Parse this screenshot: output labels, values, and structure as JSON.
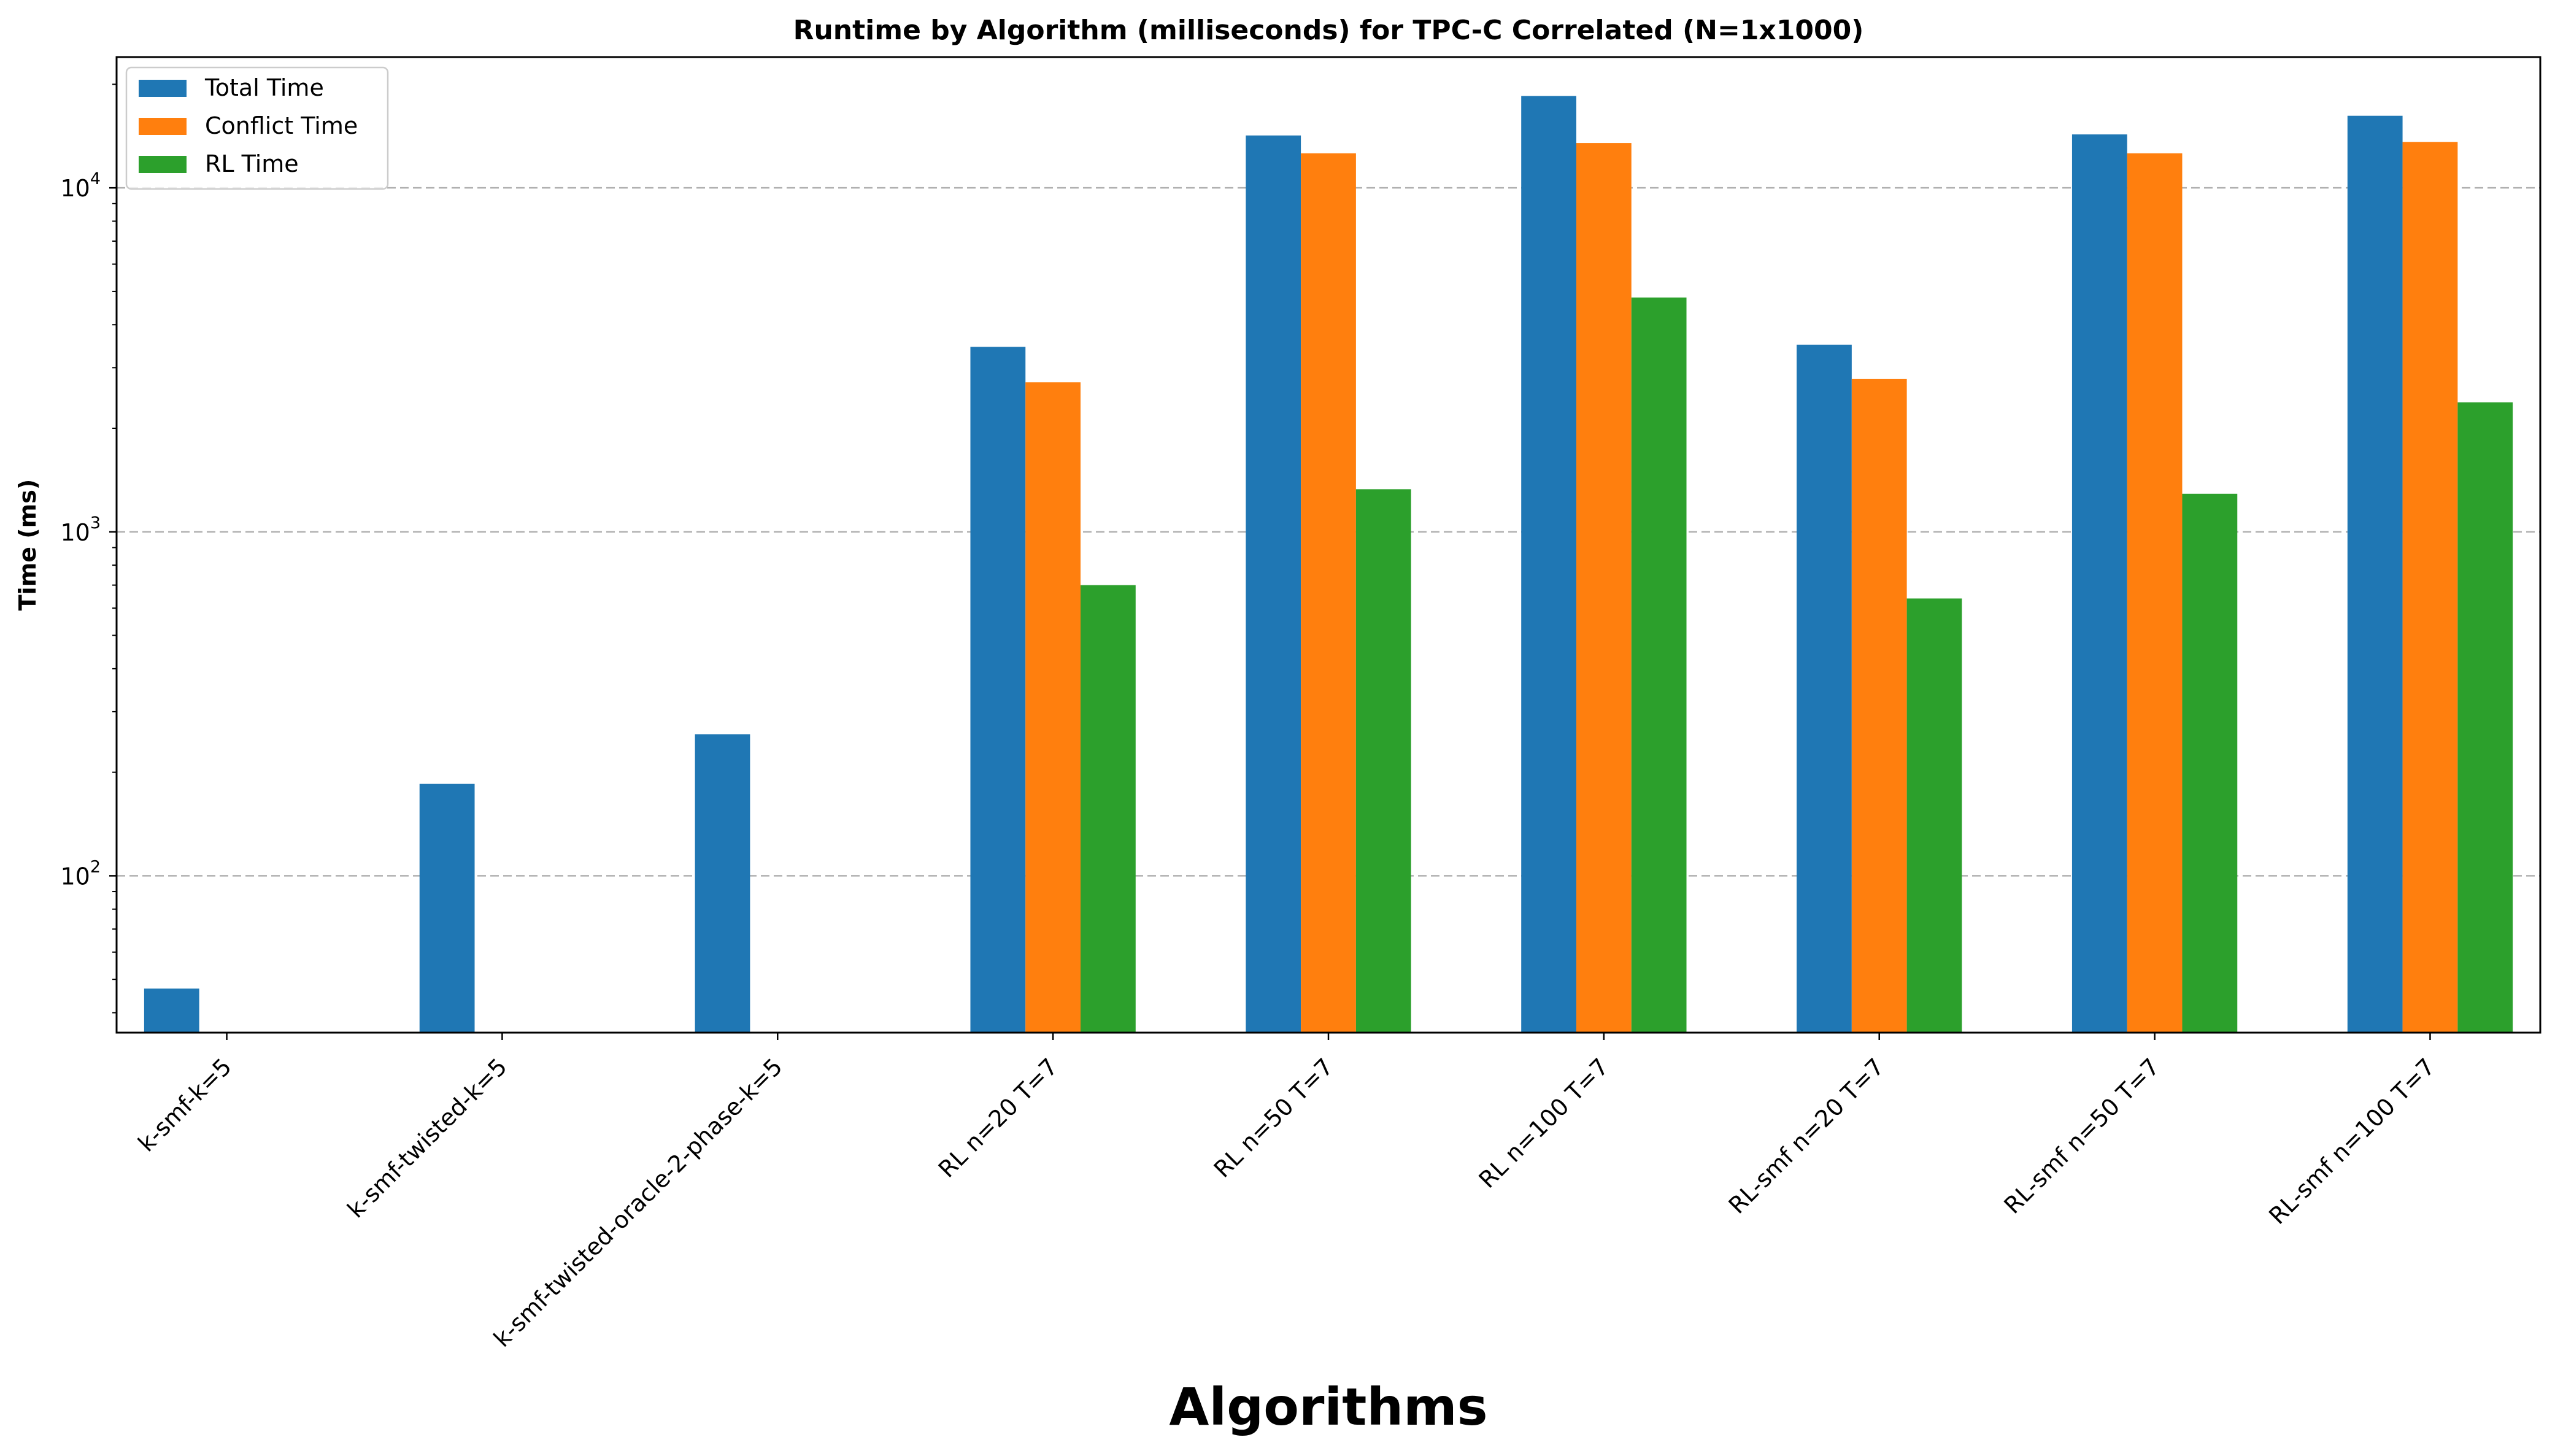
{
  "chart_data": {
    "type": "bar",
    "title": "Runtime by Algorithm (milliseconds) for TPC-C Correlated (N=1x1000)",
    "xlabel": "Algorithms",
    "ylabel": "Time (ms)",
    "yscale": "log",
    "ylim": [
      35,
      24000
    ],
    "y_ticks": [
      {
        "value": 100,
        "base": "10",
        "exp": "2"
      },
      {
        "value": 1000,
        "base": "10",
        "exp": "3"
      },
      {
        "value": 10000,
        "base": "10",
        "exp": "4"
      }
    ],
    "grid": "y-major-dashed",
    "legend_position": "top-left",
    "categories": [
      "k-smf-k=5",
      "k-smf-twisted-k=5",
      "k-smf-twisted-oracle-2-phase-k=5",
      "RL n=20 T=7",
      "RL n=50 T=7",
      "RL n=100 T=7",
      "RL-smf n=20 T=7",
      "RL-smf n=50 T=7",
      "RL-smf n=100 T=7"
    ],
    "series": [
      {
        "name": "Total Time",
        "color": "#1f77b4",
        "values": [
          47,
          185,
          258,
          3450,
          14200,
          18500,
          3500,
          14300,
          16200
        ]
      },
      {
        "name": "Conflict Time",
        "color": "#ff7f0e",
        "values": [
          null,
          null,
          null,
          2720,
          12600,
          13500,
          2780,
          12600,
          13600
        ]
      },
      {
        "name": "RL Time",
        "color": "#2ca02c",
        "values": [
          null,
          null,
          null,
          700,
          1330,
          4800,
          640,
          1290,
          2380
        ]
      }
    ]
  }
}
